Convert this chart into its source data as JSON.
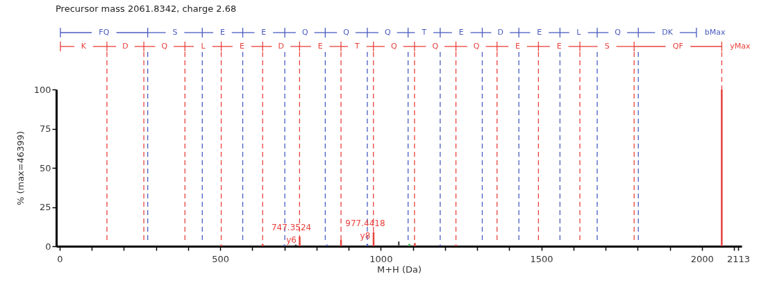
{
  "chart_data": {
    "type": "bar",
    "title": "Precursor mass 2061.8342, charge 2.68",
    "xlabel": "M+H (Da)",
    "ylabel": "% (max=46399)",
    "x": [
      503,
      632,
      700,
      735,
      747.3524,
      832,
      876,
      958,
      977.4418,
      1056,
      1089,
      1106,
      1185,
      1234,
      2061.8342
    ],
    "values": [
      1,
      1.5,
      1,
      1,
      6,
      1,
      4,
      1.5,
      9,
      3,
      1.5,
      2,
      1,
      1,
      100
    ],
    "colors": [
      "#e8413c",
      "#e8413c",
      "#4a5bbf",
      "#333333",
      "#e8413c",
      "#4a5bbf",
      "#e8413c",
      "#4a5bbf",
      "#e8413c",
      "#555555",
      "#3cb043",
      "#e8413c",
      "#4a5bbf",
      "#e8413c",
      "#e8413c"
    ],
    "xlim": [
      0,
      2113
    ],
    "xticks": [
      0,
      {
        "value": 100,
        "label": null
      },
      {
        "value": 200,
        "label": null
      },
      {
        "value": 300,
        "label": null
      },
      {
        "value": 400,
        "label": null
      },
      500,
      {
        "value": 600,
        "label": null
      },
      {
        "value": 700,
        "label": null
      },
      {
        "value": 800,
        "label": null
      },
      {
        "value": 900,
        "label": null
      },
      1000,
      {
        "value": 1100,
        "label": null
      },
      {
        "value": 1200,
        "label": null
      },
      {
        "value": 1300,
        "label": null
      },
      {
        "value": 1400,
        "label": null
      },
      1500,
      {
        "value": 1600,
        "label": null
      },
      {
        "value": 1700,
        "label": null
      },
      {
        "value": 1800,
        "label": null
      },
      {
        "value": 1900,
        "label": null
      },
      2000,
      {
        "value": 2100,
        "label": null
      },
      2113
    ],
    "ylim": [
      0,
      100
    ],
    "yticks": [
      0,
      25,
      50,
      75,
      100
    ],
    "grid": false,
    "ref_lines": [
      {
        "axis": "x",
        "value": 274,
        "color": "#4a5bbf",
        "line_style": "dashed"
      },
      {
        "axis": "x",
        "value": 444,
        "color": "#4a5bbf",
        "line_style": "dashed"
      },
      {
        "axis": "x",
        "value": 570,
        "color": "#4a5bbf",
        "line_style": "dashed"
      },
      {
        "axis": "x",
        "value": 701,
        "color": "#4a5bbf",
        "line_style": "dashed"
      },
      {
        "axis": "x",
        "value": 827,
        "color": "#4a5bbf",
        "line_style": "dashed"
      },
      {
        "axis": "x",
        "value": 958,
        "color": "#4a5bbf",
        "line_style": "dashed"
      },
      {
        "axis": "x",
        "value": 1085,
        "color": "#4a5bbf",
        "line_style": "dashed"
      },
      {
        "axis": "x",
        "value": 1185,
        "color": "#4a5bbf",
        "line_style": "dashed"
      },
      {
        "axis": "x",
        "value": 1316,
        "color": "#4a5bbf",
        "line_style": "dashed"
      },
      {
        "axis": "x",
        "value": 1430,
        "color": "#4a5bbf",
        "line_style": "dashed"
      },
      {
        "axis": "x",
        "value": 1558,
        "color": "#4a5bbf",
        "line_style": "dashed"
      },
      {
        "axis": "x",
        "value": 1674,
        "color": "#4a5bbf",
        "line_style": "dashed"
      },
      {
        "axis": "x",
        "value": 1802,
        "color": "#4a5bbf",
        "line_style": "dashed"
      },
      {
        "axis": "x",
        "value": 147,
        "color": "#e8413c",
        "line_style": "dashed"
      },
      {
        "axis": "x",
        "value": 262,
        "color": "#e8413c",
        "line_style": "dashed"
      },
      {
        "axis": "x",
        "value": 390,
        "color": "#e8413c",
        "line_style": "dashed"
      },
      {
        "axis": "x",
        "value": 503,
        "color": "#e8413c",
        "line_style": "dashed"
      },
      {
        "axis": "x",
        "value": 632,
        "color": "#e8413c",
        "line_style": "dashed"
      },
      {
        "axis": "x",
        "value": 747,
        "color": "#e8413c",
        "line_style": "dashed"
      },
      {
        "axis": "x",
        "value": 876,
        "color": "#e8413c",
        "line_style": "dashed"
      },
      {
        "axis": "x",
        "value": 977,
        "color": "#e8413c",
        "line_style": "dashed"
      },
      {
        "axis": "x",
        "value": 1105,
        "color": "#e8413c",
        "line_style": "dashed"
      },
      {
        "axis": "x",
        "value": 1234,
        "color": "#e8413c",
        "line_style": "dashed"
      },
      {
        "axis": "x",
        "value": 1362,
        "color": "#e8413c",
        "line_style": "dashed"
      },
      {
        "axis": "x",
        "value": 1491,
        "color": "#e8413c",
        "line_style": "dashed"
      },
      {
        "axis": "x",
        "value": 1620,
        "color": "#e8413c",
        "line_style": "dashed"
      },
      {
        "axis": "x",
        "value": 1789,
        "color": "#e8413c",
        "line_style": "dashed"
      },
      {
        "axis": "x",
        "value": 2062,
        "color": "#e8413c",
        "line_style": "dashed"
      }
    ],
    "annotations": [
      "FQ",
      "S",
      "E",
      "E",
      "Q",
      "Q",
      "Q",
      "T",
      "E",
      "D",
      "E",
      "L",
      "Q",
      "DK",
      "bMax",
      "K",
      "D",
      "Q",
      "L",
      "E",
      "D",
      "E",
      "T",
      "Q",
      "Q",
      "Q",
      "E",
      "E",
      "S",
      "QF",
      "yMax",
      {
        "text": "747.3524\ny6",
        "x": 747.3524,
        "y": 6
      },
      {
        "text": "977.4418\ny8",
        "x": 977.4418,
        "y": 9
      }
    ]
  }
}
